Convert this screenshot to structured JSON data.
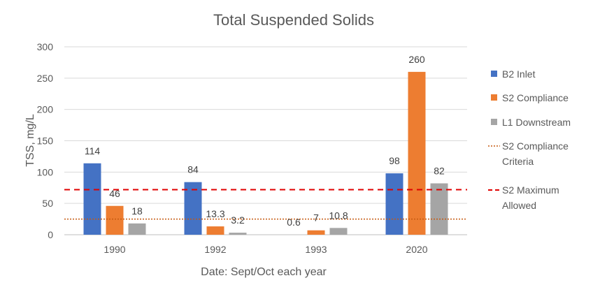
{
  "chart_data": {
    "type": "bar",
    "title": "Total Suspended Solids",
    "xlabel": "Date: Sept/Oct each year",
    "ylabel": "TSS, mg/L",
    "ylim": [
      0,
      300
    ],
    "yticks": [
      0,
      50,
      100,
      150,
      200,
      250,
      300
    ],
    "grid": true,
    "legend_position": "right",
    "categories": [
      "1990",
      "1992",
      "1993",
      "2020"
    ],
    "series": [
      {
        "name": "B2 Inlet",
        "color": "#4472C4",
        "values": [
          114,
          84,
          null,
          98
        ],
        "labels": [
          "114",
          "84",
          "",
          "98"
        ]
      },
      {
        "name": "S2 Compliance",
        "color": "#ED7D31",
        "values": [
          46,
          13.3,
          7,
          260
        ],
        "labels": [
          "46",
          "13.3",
          "7",
          "260"
        ]
      },
      {
        "name": "L1 Downstream",
        "color": "#A5A5A5",
        "values": [
          18,
          3.2,
          10.8,
          82
        ],
        "labels": [
          "18",
          "3.2",
          "10.8",
          "82"
        ]
      }
    ],
    "reference_lines": [
      {
        "name": "S2 Compliance Criteria",
        "value": 25,
        "color": "#C55A11",
        "style": "dotted"
      },
      {
        "name": "S2 Maximum Allowed",
        "value": 72,
        "color": "#E00000",
        "style": "dashed"
      }
    ],
    "annotations": [
      {
        "text": "0.6",
        "category": "1993"
      }
    ]
  }
}
